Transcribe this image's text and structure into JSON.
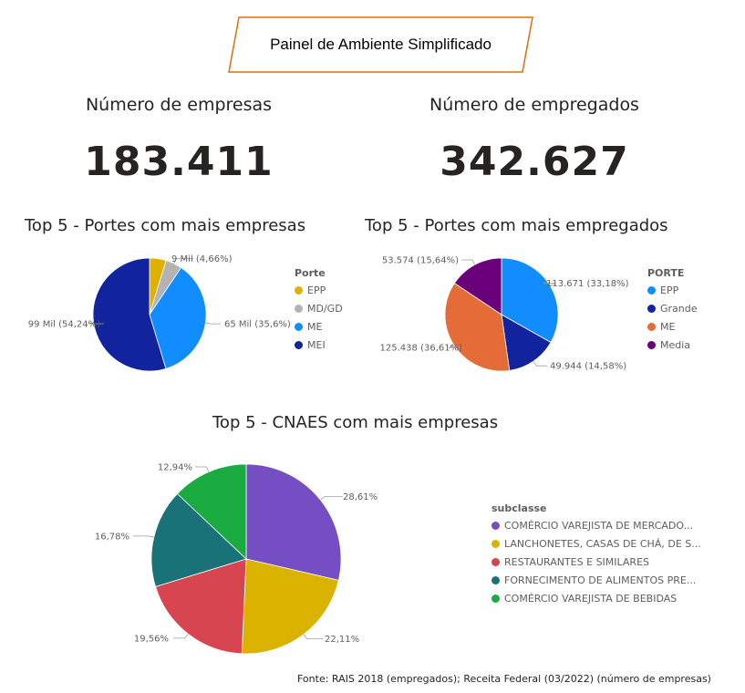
{
  "header": {
    "title": "Painel de Ambiente Simplificado",
    "border_color": "#e46c0a"
  },
  "kpis": {
    "empresas": {
      "label": "Número de empresas",
      "value": "183.411"
    },
    "empregados": {
      "label": "Número de empregados",
      "value": "342.627"
    }
  },
  "footnote": "Fonte: RAIS 2018 (empregados); Receita Federal (03/2022) (número de empresas)",
  "chart_data": [
    {
      "type": "pie",
      "title": "Top 5 - Portes com mais empresas",
      "legend_title": "Porte",
      "legend_position": "right",
      "categories": [
        "EPP",
        "MD/GD",
        "ME",
        "MEI"
      ],
      "values": [
        4.7,
        4.66,
        35.6,
        54.24
      ],
      "colors": [
        "#e0b000",
        "#b3b3b3",
        "#118dff",
        "#12239e"
      ],
      "data_labels": [
        "",
        "9 Mil (4,66%)",
        "65 Mil (35,6%)",
        "99 Mil (54,24%)"
      ]
    },
    {
      "type": "pie",
      "title": "Top 5 - Portes com mais empregados",
      "legend_title": "PORTE",
      "legend_position": "right",
      "categories": [
        "EPP",
        "Grande",
        "ME",
        "Media"
      ],
      "values": [
        113671,
        49944,
        125438,
        53574
      ],
      "colors": [
        "#118dff",
        "#12239e",
        "#e66c37",
        "#6b007b"
      ],
      "data_labels": [
        "113.671 (33,18%)",
        "49.944 (14,58%)",
        "125.438 (36,61%)",
        "53.574 (15,64%)"
      ]
    },
    {
      "type": "pie",
      "title": "Top 5 - CNAES com mais empresas",
      "legend_title": "subclasse",
      "legend_position": "right",
      "categories": [
        "COMÉRCIO VAREJISTA DE MERCADO...",
        "LANCHONETES, CASAS DE CHÁ, DE S...",
        "RESTAURANTES E SIMILARES",
        "FORNECIMENTO DE ALIMENTOS PRE...",
        "COMÉRCIO VAREJISTA DE BEBIDAS"
      ],
      "values": [
        28.61,
        22.11,
        19.56,
        16.78,
        12.94
      ],
      "colors": [
        "#744ec2",
        "#d9b300",
        "#d64550",
        "#197278",
        "#1aab40"
      ],
      "data_labels": [
        "28,61%",
        "22,11%",
        "19,56%",
        "16,78%",
        "12,94%"
      ]
    }
  ]
}
